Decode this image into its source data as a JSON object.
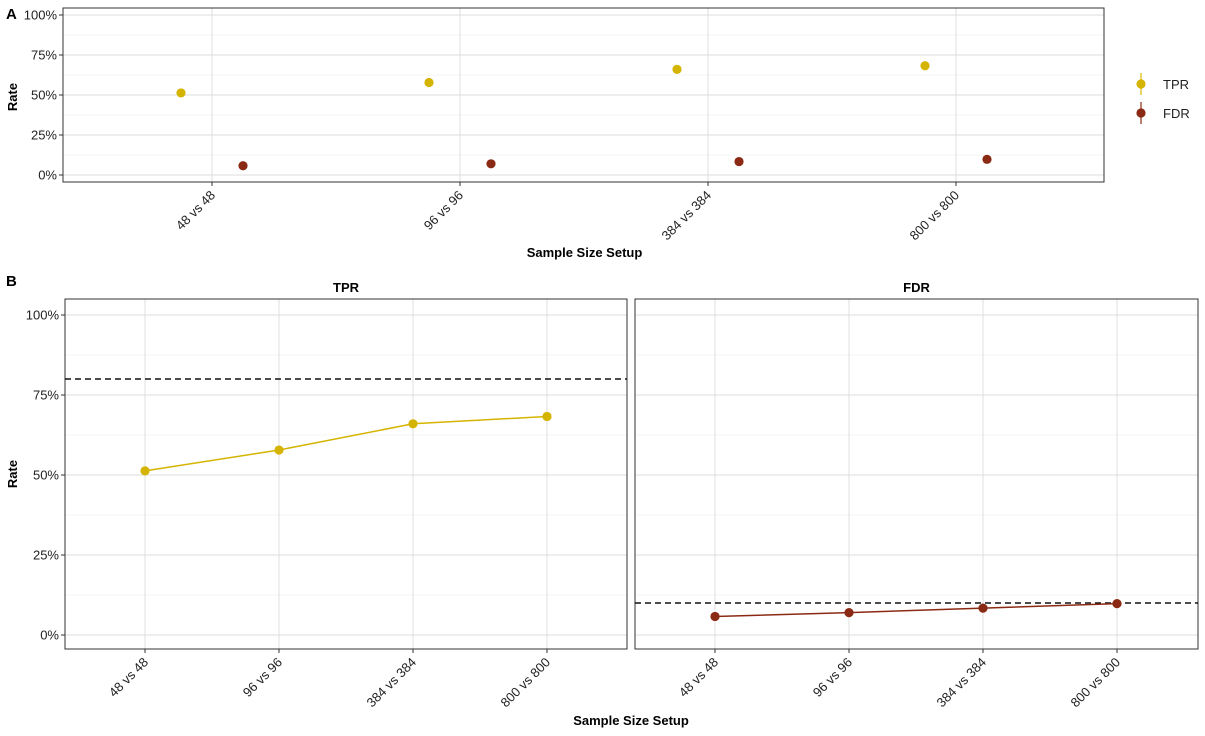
{
  "figure": {
    "panel_a_tag": "A",
    "panel_b_tag": "B"
  },
  "colors": {
    "TPR": "#D4B400",
    "FDR": "#8B2A14",
    "grid": "#DCDCDC",
    "reference_line": "#111111"
  },
  "chart_data": [
    {
      "type": "scatter",
      "panel": "A",
      "categories": [
        "48 vs 48",
        "96 vs 96",
        "384 vs 384",
        "800 vs 800"
      ],
      "series": [
        {
          "name": "TPR",
          "values": [
            0.513,
            0.578,
            0.66,
            0.683
          ]
        },
        {
          "name": "FDR",
          "values": [
            0.058,
            0.07,
            0.084,
            0.098
          ]
        }
      ],
      "xlabel": "Sample Size Setup",
      "ylabel": "Rate",
      "ylim": [
        0,
        1
      ],
      "yticks": [
        "0%",
        "25%",
        "50%",
        "75%",
        "100%"
      ],
      "grid": true,
      "legend": "right",
      "legend_entries": [
        "TPR",
        "FDR"
      ]
    },
    {
      "type": "line",
      "panel": "B",
      "facets": [
        {
          "strip_label": "TPR",
          "categories": [
            "48 vs 48",
            "96 vs 96",
            "384 vs 384",
            "800 vs 800"
          ],
          "values": [
            0.513,
            0.578,
            0.66,
            0.683
          ],
          "reference_line": 0.8
        },
        {
          "strip_label": "FDR",
          "categories": [
            "48 vs 48",
            "96 vs 96",
            "384 vs 384",
            "800 vs 800"
          ],
          "values": [
            0.058,
            0.07,
            0.084,
            0.098
          ],
          "reference_line": 0.1
        }
      ],
      "xlabel": "Sample Size Setup",
      "ylabel": "Rate",
      "ylim": [
        0,
        1
      ],
      "yticks": [
        "0%",
        "25%",
        "50%",
        "75%",
        "100%"
      ],
      "grid": true
    }
  ]
}
